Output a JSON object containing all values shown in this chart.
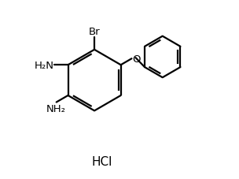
{
  "bg_color": "#ffffff",
  "line_color": "#000000",
  "line_width": 1.6,
  "font_size": 9.5,
  "hcl_font_size": 11,
  "hcl_text": "HCl",
  "br_label": "Br",
  "o_label": "O",
  "nh2_left_label": "H₂N",
  "nh2_bottom_label": "NH₂",
  "mcx": 0.36,
  "mcy": 0.55,
  "mr": 0.17,
  "bcx": 0.74,
  "bcy": 0.68,
  "br2": 0.115
}
